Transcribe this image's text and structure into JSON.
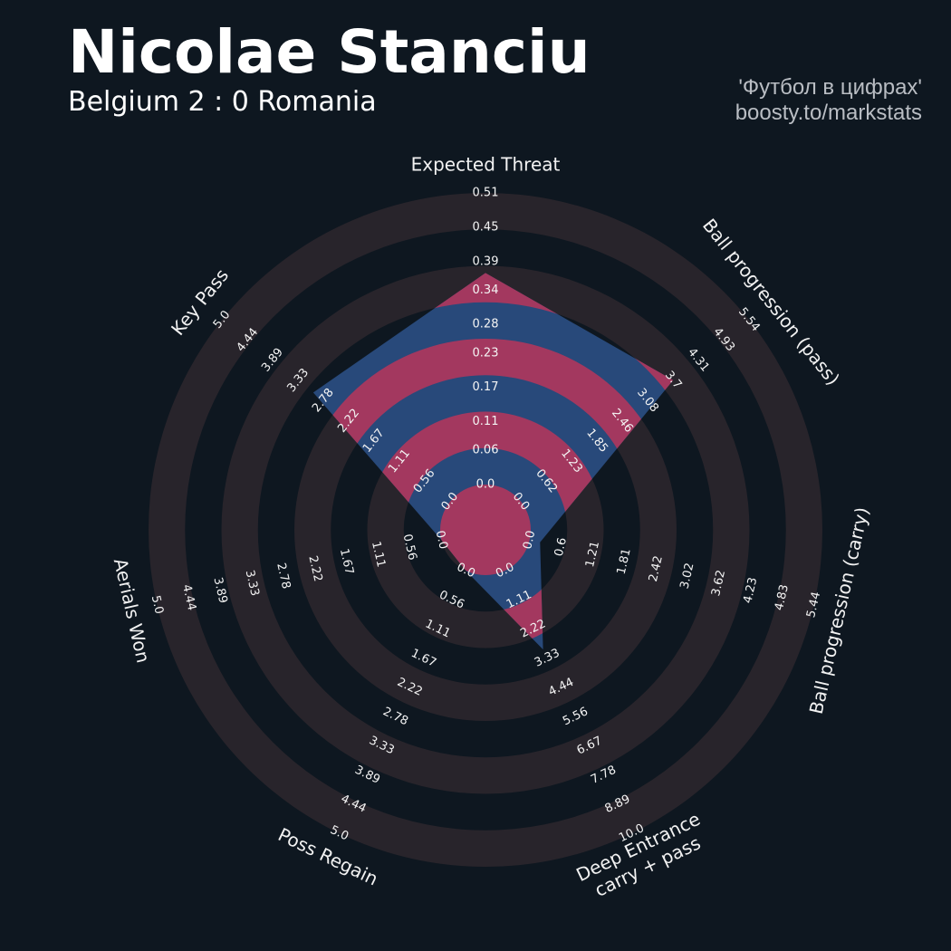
{
  "chart_data": {
    "type": "radar",
    "title": "Nicolae Stanciu",
    "subtitle": "Belgium 2 : 0 Romania",
    "credits": [
      "'Футбол в цифрах'",
      "boosty.to/markstats"
    ],
    "categories": [
      "Expected Threat",
      "Ball progression (pass)",
      "Ball progression (carry)",
      [
        "Deep Entrance",
        "carry + pass"
      ],
      "Poss Regain",
      "Aerials Won",
      "Key Pass"
    ],
    "values": [
      0.37,
      3.7,
      0.2,
      3,
      0,
      0,
      3
    ],
    "axes": [
      {
        "lim": [
          0,
          0.51
        ],
        "ticks": [
          {
            "value": 0,
            "label": "0.0"
          },
          0.06,
          0.11,
          0.17,
          0.23,
          0.28,
          0.34,
          0.39,
          0.45,
          0.51
        ]
      },
      {
        "lim": [
          0,
          5.54
        ],
        "ticks": [
          {
            "value": 0,
            "label": "0.0"
          },
          0.62,
          1.23,
          1.85,
          2.46,
          3.08,
          3.7,
          4.31,
          4.93,
          5.54
        ]
      },
      {
        "lim": [
          0,
          5.44
        ],
        "ticks": [
          {
            "value": 0,
            "label": "0.0"
          },
          0.6,
          1.21,
          1.81,
          2.42,
          3.02,
          3.62,
          4.23,
          4.83,
          5.44
        ]
      },
      {
        "lim": [
          0,
          10
        ],
        "ticks": [
          {
            "value": 0,
            "label": "0.0"
          },
          1.11,
          2.22,
          3.33,
          4.44,
          5.56,
          6.67,
          7.78,
          8.89,
          {
            "value": 10,
            "label": "10.0"
          }
        ]
      },
      {
        "lim": [
          0,
          5
        ],
        "ticks": [
          {
            "value": 0,
            "label": "0.0"
          },
          0.56,
          1.11,
          1.67,
          2.22,
          2.78,
          3.33,
          3.89,
          4.44,
          {
            "value": 5,
            "label": "5.0"
          }
        ]
      },
      {
        "lim": [
          0,
          5
        ],
        "ticks": [
          {
            "value": 0,
            "label": "0.0"
          },
          0.56,
          1.11,
          1.67,
          2.22,
          2.78,
          3.33,
          3.89,
          4.44,
          {
            "value": 5,
            "label": "5.0"
          }
        ]
      },
      {
        "lim": [
          0,
          5
        ],
        "ticks": [
          {
            "value": 0,
            "label": "0.0"
          },
          0.56,
          1.11,
          1.67,
          2.22,
          2.78,
          3.33,
          3.89,
          4.44,
          {
            "value": 5,
            "label": "5.0"
          }
        ]
      }
    ],
    "ring_color": "#28242b",
    "color": "#28497a",
    "highlight_color": "#a3385f"
  }
}
